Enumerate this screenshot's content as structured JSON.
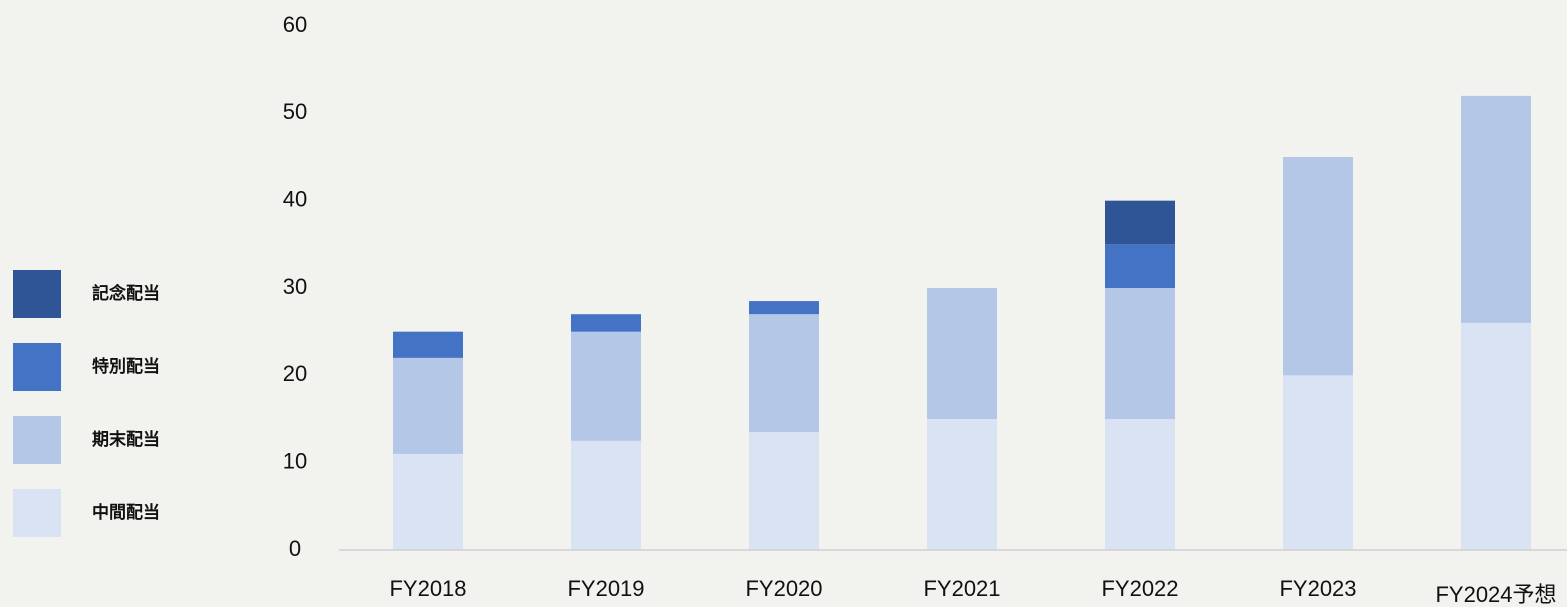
{
  "chart_data": {
    "type": "stacked-bar",
    "categories": [
      "FY2018",
      "FY2019",
      "FY2020",
      "FY2021",
      "FY2022",
      "FY2023",
      "FY2024予想"
    ],
    "series": [
      {
        "name": "中間配当",
        "color": "#dae3f3",
        "values": [
          11,
          12.5,
          13.5,
          15,
          15,
          20,
          26
        ]
      },
      {
        "name": "期末配当",
        "color": "#b4c7e7",
        "values": [
          11,
          12.5,
          13.5,
          15,
          15,
          25,
          26
        ]
      },
      {
        "name": "特別配当",
        "color": "#4472c4",
        "values": [
          3,
          2,
          1.5,
          null,
          5,
          null,
          null
        ]
      },
      {
        "name": "記念配当",
        "color": "#2f5597",
        "values": [
          null,
          null,
          null,
          null,
          5,
          null,
          null
        ]
      }
    ],
    "ylim": [
      0,
      60
    ],
    "yticks": [
      0,
      10,
      20,
      30,
      40,
      50,
      60
    ],
    "grid": false,
    "legend": "left"
  }
}
